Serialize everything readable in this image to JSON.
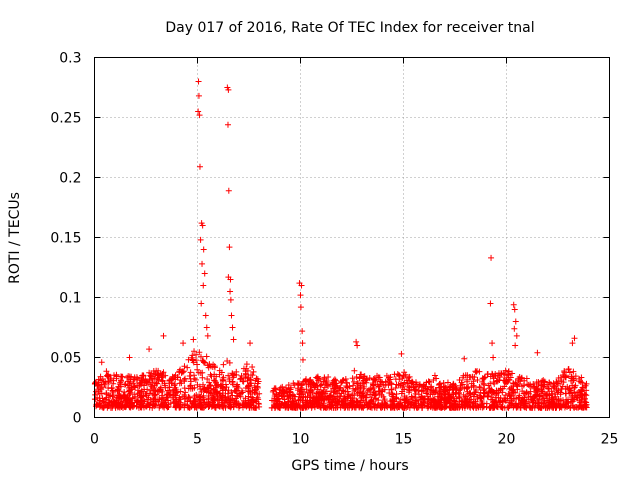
{
  "chart_data": {
    "type": "scatter",
    "title": "Day 017 of 2016, Rate Of TEC Index for receiver tnal",
    "xlabel": "GPS time / hours",
    "ylabel": "ROTI / TECUs",
    "xlim": [
      0,
      25
    ],
    "ylim": [
      0,
      0.3
    ],
    "xticks": [
      0,
      5,
      10,
      15,
      20,
      25
    ],
    "yticks": [
      0,
      0.05,
      0.1,
      0.15,
      0.2,
      0.25,
      0.3
    ],
    "xtick_labels": [
      "0",
      "5",
      "10",
      "15",
      "20",
      "25"
    ],
    "ytick_labels": [
      "0",
      "0.05",
      "0.1",
      "0.15",
      "0.2",
      "0.25",
      "0.3"
    ],
    "grid": true,
    "marker": "+",
    "color": "#ff0000",
    "data_gap_hours": [
      8.0,
      8.6
    ],
    "baseline_envelope": [
      [
        0.0,
        0.008,
        0.03
      ],
      [
        0.5,
        0.008,
        0.04
      ],
      [
        1.0,
        0.008,
        0.036
      ],
      [
        1.5,
        0.008,
        0.034
      ],
      [
        2.0,
        0.008,
        0.036
      ],
      [
        2.5,
        0.008,
        0.038
      ],
      [
        3.0,
        0.008,
        0.04
      ],
      [
        3.5,
        0.008,
        0.038
      ],
      [
        4.0,
        0.008,
        0.036
      ],
      [
        4.5,
        0.008,
        0.05
      ],
      [
        5.0,
        0.008,
        0.06
      ],
      [
        5.5,
        0.008,
        0.05
      ],
      [
        6.0,
        0.008,
        0.04
      ],
      [
        6.5,
        0.008,
        0.05
      ],
      [
        7.0,
        0.008,
        0.036
      ],
      [
        7.5,
        0.008,
        0.048
      ],
      [
        8.0,
        0.008,
        0.03
      ],
      [
        8.6,
        0.008,
        0.024
      ],
      [
        9.0,
        0.008,
        0.025
      ],
      [
        9.5,
        0.008,
        0.028
      ],
      [
        10.0,
        0.008,
        0.03
      ],
      [
        10.5,
        0.008,
        0.034
      ],
      [
        11.0,
        0.008,
        0.036
      ],
      [
        11.5,
        0.008,
        0.034
      ],
      [
        12.0,
        0.008,
        0.03
      ],
      [
        12.5,
        0.008,
        0.04
      ],
      [
        13.0,
        0.008,
        0.036
      ],
      [
        13.5,
        0.008,
        0.034
      ],
      [
        14.0,
        0.008,
        0.036
      ],
      [
        14.5,
        0.008,
        0.036
      ],
      [
        15.0,
        0.008,
        0.04
      ],
      [
        15.5,
        0.008,
        0.03
      ],
      [
        16.0,
        0.008,
        0.03
      ],
      [
        16.5,
        0.008,
        0.036
      ],
      [
        17.0,
        0.008,
        0.03
      ],
      [
        17.5,
        0.008,
        0.03
      ],
      [
        18.0,
        0.008,
        0.036
      ],
      [
        18.5,
        0.008,
        0.04
      ],
      [
        19.0,
        0.008,
        0.04
      ],
      [
        19.5,
        0.008,
        0.036
      ],
      [
        20.0,
        0.008,
        0.04
      ],
      [
        20.5,
        0.008,
        0.036
      ],
      [
        21.0,
        0.008,
        0.034
      ],
      [
        21.5,
        0.008,
        0.034
      ],
      [
        22.0,
        0.008,
        0.03
      ],
      [
        22.5,
        0.008,
        0.034
      ],
      [
        23.0,
        0.008,
        0.045
      ],
      [
        23.5,
        0.008,
        0.036
      ],
      [
        23.9,
        0.008,
        0.03
      ]
    ],
    "notable_points": [
      {
        "x": 5.05,
        "y": 0.28
      },
      {
        "x": 5.07,
        "y": 0.268
      },
      {
        "x": 5.03,
        "y": 0.255
      },
      {
        "x": 5.1,
        "y": 0.252
      },
      {
        "x": 5.12,
        "y": 0.209
      },
      {
        "x": 5.2,
        "y": 0.162
      },
      {
        "x": 5.25,
        "y": 0.16
      },
      {
        "x": 5.15,
        "y": 0.148
      },
      {
        "x": 5.3,
        "y": 0.14
      },
      {
        "x": 5.22,
        "y": 0.128
      },
      {
        "x": 5.35,
        "y": 0.12
      },
      {
        "x": 5.28,
        "y": 0.11
      },
      {
        "x": 5.18,
        "y": 0.095
      },
      {
        "x": 5.4,
        "y": 0.085
      },
      {
        "x": 5.45,
        "y": 0.075
      },
      {
        "x": 5.5,
        "y": 0.068
      },
      {
        "x": 6.45,
        "y": 0.275
      },
      {
        "x": 6.5,
        "y": 0.273
      },
      {
        "x": 6.48,
        "y": 0.244
      },
      {
        "x": 6.52,
        "y": 0.189
      },
      {
        "x": 6.55,
        "y": 0.142
      },
      {
        "x": 6.5,
        "y": 0.117
      },
      {
        "x": 6.6,
        "y": 0.115
      },
      {
        "x": 6.58,
        "y": 0.105
      },
      {
        "x": 6.62,
        "y": 0.098
      },
      {
        "x": 6.65,
        "y": 0.085
      },
      {
        "x": 6.7,
        "y": 0.075
      },
      {
        "x": 6.75,
        "y": 0.065
      },
      {
        "x": 9.95,
        "y": 0.112
      },
      {
        "x": 10.05,
        "y": 0.11
      },
      {
        "x": 10.0,
        "y": 0.102
      },
      {
        "x": 10.02,
        "y": 0.092
      },
      {
        "x": 10.08,
        "y": 0.072
      },
      {
        "x": 10.1,
        "y": 0.062
      },
      {
        "x": 10.12,
        "y": 0.048
      },
      {
        "x": 19.25,
        "y": 0.133
      },
      {
        "x": 19.22,
        "y": 0.095
      },
      {
        "x": 19.3,
        "y": 0.062
      },
      {
        "x": 19.35,
        "y": 0.05
      },
      {
        "x": 20.35,
        "y": 0.094
      },
      {
        "x": 20.4,
        "y": 0.09
      },
      {
        "x": 20.45,
        "y": 0.08
      },
      {
        "x": 20.38,
        "y": 0.074
      },
      {
        "x": 20.5,
        "y": 0.068
      },
      {
        "x": 20.42,
        "y": 0.06
      },
      {
        "x": 12.7,
        "y": 0.063
      },
      {
        "x": 12.75,
        "y": 0.06
      },
      {
        "x": 3.35,
        "y": 0.068
      },
      {
        "x": 4.3,
        "y": 0.062
      },
      {
        "x": 4.8,
        "y": 0.065
      },
      {
        "x": 7.55,
        "y": 0.062
      },
      {
        "x": 23.3,
        "y": 0.066
      },
      {
        "x": 23.2,
        "y": 0.062
      },
      {
        "x": 2.65,
        "y": 0.057
      },
      {
        "x": 1.7,
        "y": 0.05
      },
      {
        "x": 17.95,
        "y": 0.049
      },
      {
        "x": 21.5,
        "y": 0.054
      },
      {
        "x": 14.9,
        "y": 0.053
      },
      {
        "x": 0.35,
        "y": 0.046
      }
    ]
  }
}
